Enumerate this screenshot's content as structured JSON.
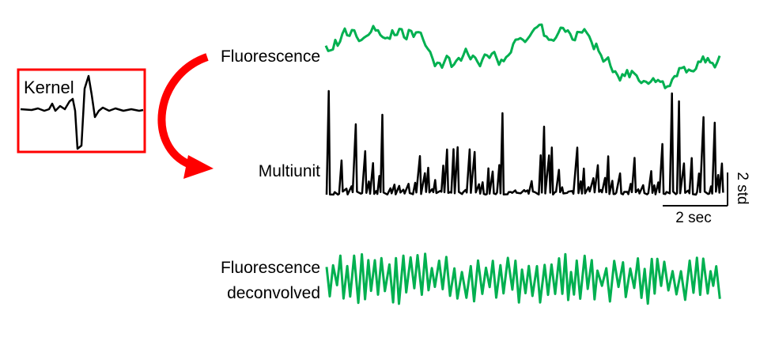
{
  "kernel": {
    "label": "Kernel",
    "box_color": "#ff0000",
    "trace_color": "#000000"
  },
  "arrow": {
    "color": "#ff0000"
  },
  "traces": {
    "fluorescence": {
      "label": "Fluorescence",
      "color": "#00b050"
    },
    "multiunit": {
      "label": "Multiunit",
      "color": "#000000"
    },
    "deconvolved": {
      "label_line1": "Fluorescence",
      "label_line2": "deconvolved",
      "color": "#00b050"
    }
  },
  "scale_bar": {
    "time_label": "2 sec",
    "amplitude_label": "2 std"
  }
}
